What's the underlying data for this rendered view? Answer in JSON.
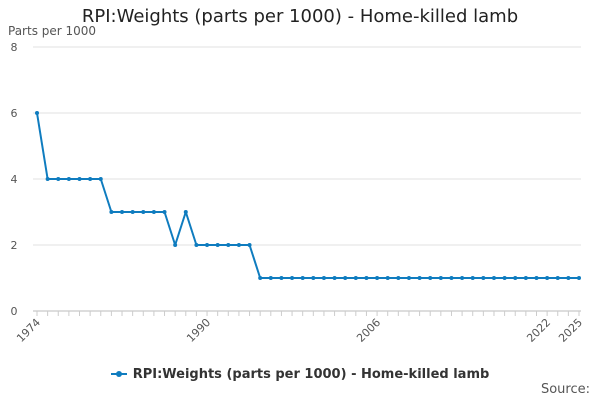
{
  "chart_data": {
    "type": "line",
    "title": "RPI:Weights (parts per 1000) - Home-killed lamb",
    "ylabel": "Parts per 1000",
    "xlabel": "",
    "ylim": [
      0,
      8
    ],
    "yticks": [
      0,
      2,
      4,
      6,
      8
    ],
    "xlim": [
      1974,
      2025
    ],
    "xtick_labels": [
      "1974",
      "1990",
      "2006",
      "2022",
      "2025"
    ],
    "grid": true,
    "legend_position": "bottom",
    "series": [
      {
        "name": "RPI:Weights (parts per 1000) - Home-killed lamb",
        "color": "#0f7cbf",
        "x": [
          1974,
          1975,
          1976,
          1977,
          1978,
          1979,
          1980,
          1981,
          1982,
          1983,
          1984,
          1985,
          1986,
          1987,
          1988,
          1989,
          1990,
          1991,
          1992,
          1993,
          1994,
          1995,
          1996,
          1997,
          1998,
          1999,
          2000,
          2001,
          2002,
          2003,
          2004,
          2005,
          2006,
          2007,
          2008,
          2009,
          2010,
          2011,
          2012,
          2013,
          2014,
          2015,
          2016,
          2017,
          2018,
          2019,
          2020,
          2021,
          2022,
          2023,
          2024,
          2025
        ],
        "values": [
          6,
          4,
          4,
          4,
          4,
          4,
          4,
          3,
          3,
          3,
          3,
          3,
          3,
          2,
          3,
          2,
          2,
          2,
          2,
          2,
          2,
          1,
          1,
          1,
          1,
          1,
          1,
          1,
          1,
          1,
          1,
          1,
          1,
          1,
          1,
          1,
          1,
          1,
          1,
          1,
          1,
          1,
          1,
          1,
          1,
          1,
          1,
          1,
          1,
          1,
          1,
          1
        ]
      }
    ]
  },
  "source_label": "Source:"
}
